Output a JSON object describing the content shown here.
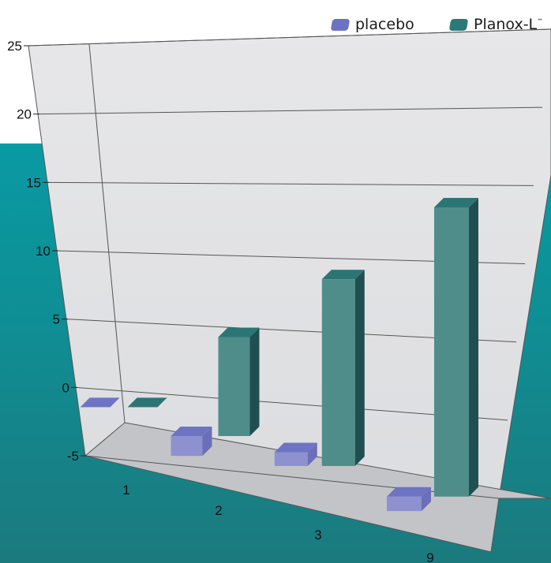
{
  "chart_data": {
    "type": "bar",
    "title": "",
    "xlabel": "",
    "ylabel": "",
    "ylim": [
      -5,
      25
    ],
    "y_ticks": [
      "25",
      "20",
      "15",
      "10",
      "5",
      "0",
      "-5"
    ],
    "categories": [
      "1",
      "2",
      "3",
      "9"
    ],
    "grid": true,
    "legend_position": "top-right",
    "series": [
      {
        "name": "placebo",
        "color": "#6b73c4",
        "values": [
          0,
          -1.5,
          1.0,
          -1.0
        ]
      },
      {
        "name": "Planox-L",
        "color": "#2a7a78",
        "values": [
          0,
          7.5,
          13.5,
          20.0
        ]
      }
    ],
    "legend_suffix": "™"
  }
}
